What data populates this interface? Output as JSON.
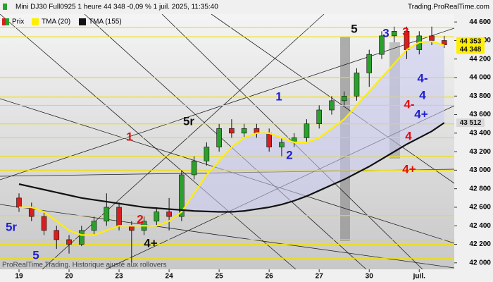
{
  "chart_data": {
    "type": "candlestick",
    "title": "Mini DJ30 Full0925 1 heure 44 348 -0,09 % 1 juil. 2025, 11:35:40",
    "source": "Trading.ProRealTime.com",
    "footer": "ProRealTime Trading. Historique ajusté aux rollovers",
    "x": [
      0,
      0.25,
      0.5,
      0.75,
      1,
      1.25,
      1.5,
      1.75,
      2,
      2.25,
      2.5,
      2.75,
      3,
      3.25,
      3.5,
      3.75,
      4,
      4.25,
      4.5,
      4.75,
      5,
      5.25,
      5.5,
      5.75,
      6,
      6.25,
      6.5,
      6.75,
      7,
      7.25,
      7.5,
      7.75,
      8,
      8.25,
      8.5
    ],
    "series": [
      {
        "name": "Prix",
        "color_up": "#2ca02c",
        "color_down": "#d62020",
        "open": [
          42700,
          42600,
          42500,
          42350,
          42250,
          42200,
          42350,
          42450,
          42600,
          42400,
          42350,
          42450,
          42550,
          42500,
          42950,
          43100,
          43250,
          43450,
          43400,
          43450,
          43400,
          43250,
          43300,
          43350,
          43500,
          43650,
          43750,
          43800,
          44050,
          44250,
          44450,
          44500,
          44300,
          44450,
          44400
        ],
        "high": [
          42750,
          42650,
          42550,
          42400,
          42300,
          42400,
          42500,
          42750,
          42650,
          42450,
          42500,
          42600,
          42700,
          43000,
          43150,
          43300,
          43500,
          43550,
          43500,
          43500,
          43450,
          43350,
          43400,
          43550,
          43700,
          43800,
          43850,
          44100,
          44300,
          44500,
          44550,
          44550,
          44500,
          44550,
          44450
        ],
        "low": [
          42550,
          42450,
          42300,
          42150,
          42100,
          42180,
          42300,
          42400,
          42350,
          42000,
          42300,
          42400,
          42350,
          42450,
          42900,
          43050,
          43200,
          43350,
          43350,
          43350,
          43200,
          43150,
          43250,
          43300,
          43450,
          43600,
          43700,
          43750,
          43900,
          44200,
          44380,
          44200,
          44250,
          44350,
          44320
        ],
        "close": [
          42600,
          42500,
          42350,
          42250,
          42200,
          42350,
          42450,
          42600,
          42400,
          42350,
          42450,
          42550,
          42500,
          42950,
          43100,
          43250,
          43450,
          43400,
          43450,
          43400,
          43250,
          43300,
          43350,
          43500,
          43650,
          43750,
          43800,
          44050,
          44250,
          44450,
          44500,
          44300,
          44450,
          44400,
          44353
        ]
      },
      {
        "name": "TMA (20)",
        "color": "#ffee00",
        "values": [
          42600,
          42600,
          42550,
          42450,
          42350,
          42300,
          42300,
          42350,
          42400,
          42400,
          42400,
          42400,
          42450,
          42550,
          42750,
          42950,
          43100,
          43250,
          43350,
          43400,
          43400,
          43350,
          43300,
          43300,
          43350,
          43450,
          43550,
          43700,
          43850,
          44000,
          44150,
          44300,
          44380,
          44390,
          44348
        ]
      },
      {
        "name": "TMA (155)",
        "color": "#111111",
        "values": [
          42850,
          42820,
          42790,
          42760,
          42730,
          42700,
          42680,
          42660,
          42640,
          42620,
          42600,
          42590,
          42580,
          42570,
          42560,
          42555,
          42550,
          42550,
          42560,
          42580,
          42600,
          42630,
          42670,
          42720,
          42780,
          42840,
          42900,
          42970,
          43040,
          43120,
          43200,
          43280,
          43350,
          43420,
          43512
        ]
      }
    ],
    "levels": [
      44540,
      44440,
      44000,
      43790,
      43700,
      43500,
      43350,
      43150,
      43000,
      42510,
      42250,
      42200,
      42050
    ],
    "last_labels": [
      {
        "value": 44353,
        "label": "44 353"
      },
      {
        "value": 44348,
        "label": "44 348"
      },
      {
        "value": 43512,
        "label": "43 512"
      }
    ],
    "annotations": [
      {
        "text": "5",
        "color": "#111111"
      },
      {
        "text": "3",
        "color": "#2020d0"
      },
      {
        "text": "3",
        "color": "#e01010"
      },
      {
        "text": "1",
        "color": "#2020d0"
      },
      {
        "text": "5r",
        "color": "#111111"
      },
      {
        "text": "1",
        "color": "#e01010"
      },
      {
        "text": "4-",
        "color": "#2020d0"
      },
      {
        "text": "4",
        "color": "#2020d0"
      },
      {
        "text": "4-",
        "color": "#e01010"
      },
      {
        "text": "4+",
        "color": "#2020d0"
      },
      {
        "text": "4",
        "color": "#e01010"
      },
      {
        "text": "2",
        "color": "#2020d0"
      },
      {
        "text": "4+",
        "color": "#e01010"
      },
      {
        "text": "2",
        "color": "#e01010"
      },
      {
        "text": "4+",
        "color": "#111111"
      },
      {
        "text": "5r",
        "color": "#2020d0"
      },
      {
        "text": "5",
        "color": "#2020d0"
      }
    ],
    "xlim": [
      -0.38,
      8.7
    ],
    "xticks": [
      {
        "value": 0,
        "label": "19"
      },
      {
        "value": 1,
        "label": "20"
      },
      {
        "value": 2,
        "label": "23"
      },
      {
        "value": 3,
        "label": "24"
      },
      {
        "value": 4,
        "label": "25"
      },
      {
        "value": 5,
        "label": "26"
      },
      {
        "value": 6,
        "label": "27"
      },
      {
        "value": 7,
        "label": "30"
      },
      {
        "value": 8,
        "label": "juil."
      }
    ],
    "ylim": [
      41930,
      44685
    ],
    "yticks": [
      {
        "value": 44600,
        "label": "44 600"
      },
      {
        "value": 44400,
        "label": "44 400"
      },
      {
        "value": 44200,
        "label": "44 200"
      },
      {
        "value": 44000,
        "label": "44 000"
      },
      {
        "value": 43800,
        "label": "43 800"
      },
      {
        "value": 43600,
        "label": "43 600"
      },
      {
        "value": 43400,
        "label": "43 400"
      },
      {
        "value": 43200,
        "label": "43 200"
      },
      {
        "value": 43000,
        "label": "43 000"
      },
      {
        "value": 42800,
        "label": "42 800"
      },
      {
        "value": 42600,
        "label": "42 600"
      },
      {
        "value": 42400,
        "label": "42 400"
      },
      {
        "value": 42200,
        "label": "42 200"
      },
      {
        "value": 42000,
        "label": "42 000"
      }
    ]
  }
}
